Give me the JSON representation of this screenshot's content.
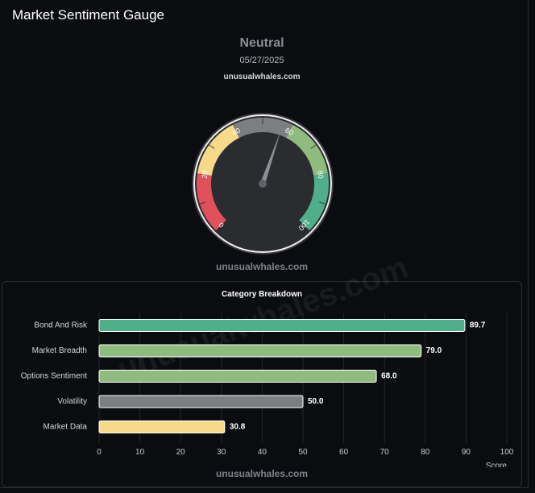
{
  "header": {
    "title": "Market Sentiment Gauge"
  },
  "gauge": {
    "sentiment": "Neutral",
    "date": "05/27/2025",
    "source": "unusualwhales.com",
    "watermark": "unusualwhales.com",
    "value": 57,
    "min": 0,
    "max": 100,
    "tick_labels": [
      "0",
      "20",
      "40",
      "60",
      "80",
      "100"
    ],
    "zones": [
      {
        "from": 0,
        "to": 20,
        "color": "#e0515c"
      },
      {
        "from": 20,
        "to": 40,
        "color": "#f7d98a"
      },
      {
        "from": 40,
        "to": 60,
        "color": "#7d7e82"
      },
      {
        "from": 60,
        "to": 80,
        "color": "#8fbb7f"
      },
      {
        "from": 80,
        "to": 100,
        "color": "#4faf8a"
      }
    ]
  },
  "chart_data": {
    "type": "bar",
    "orientation": "horizontal",
    "title": "Category Breakdown",
    "categories": [
      "Bond And Risk",
      "Market Breadth",
      "Options Sentiment",
      "Volatility",
      "Market Data"
    ],
    "values": [
      89.7,
      79.0,
      68.0,
      50.0,
      30.8
    ],
    "value_labels": [
      "89.7",
      "79.0",
      "68.0",
      "50.0",
      "30.8"
    ],
    "colors": [
      "#4faf8a",
      "#8fbb7f",
      "#8fbb7f",
      "#7d7e82",
      "#f7d98a"
    ],
    "xlabel": "Score",
    "xlim": [
      0,
      100
    ],
    "xticks": [
      0,
      10,
      20,
      30,
      40,
      50,
      60,
      70,
      80,
      90,
      100
    ],
    "grid": true,
    "watermark": "unusualwhales.com"
  }
}
